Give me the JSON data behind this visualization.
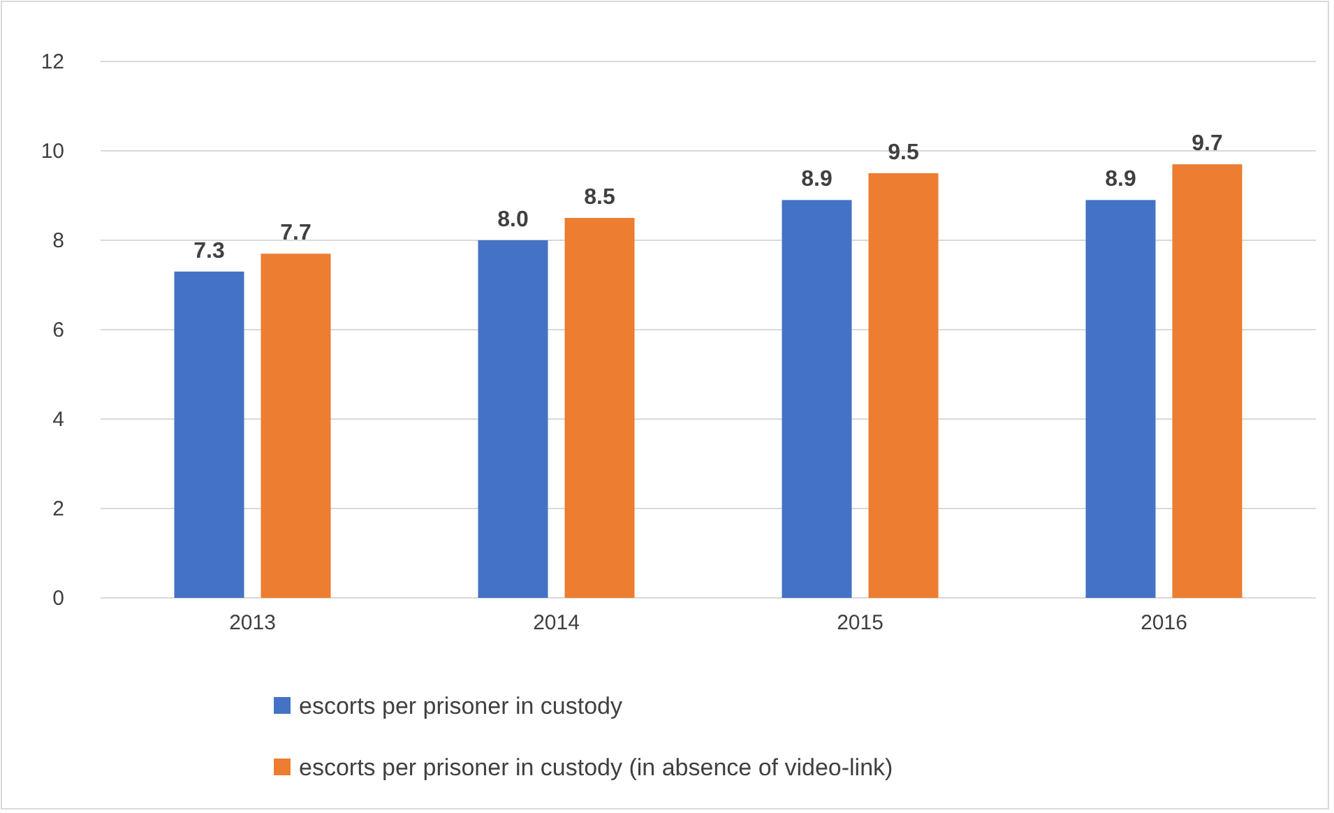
{
  "chart_data": {
    "type": "bar",
    "categories": [
      "2013",
      "2014",
      "2015",
      "2016"
    ],
    "series": [
      {
        "name": "escorts per prisoner in custody",
        "color": "#4472c4",
        "values": [
          7.3,
          8.0,
          8.9,
          8.9
        ],
        "value_labels": [
          "7.3",
          "8.0",
          "8.9",
          "8.9"
        ]
      },
      {
        "name": "escorts per prisoner in custody (in absence of video-link)",
        "color": "#ed7d31",
        "values": [
          7.7,
          8.5,
          9.5,
          9.7
        ],
        "value_labels": [
          "7.7",
          "8.5",
          "9.5",
          "9.7"
        ]
      }
    ],
    "ylim": [
      0,
      12
    ],
    "yticks": [
      0,
      2,
      4,
      6,
      8,
      10,
      12
    ],
    "grid": "y",
    "legend": "bottom"
  }
}
